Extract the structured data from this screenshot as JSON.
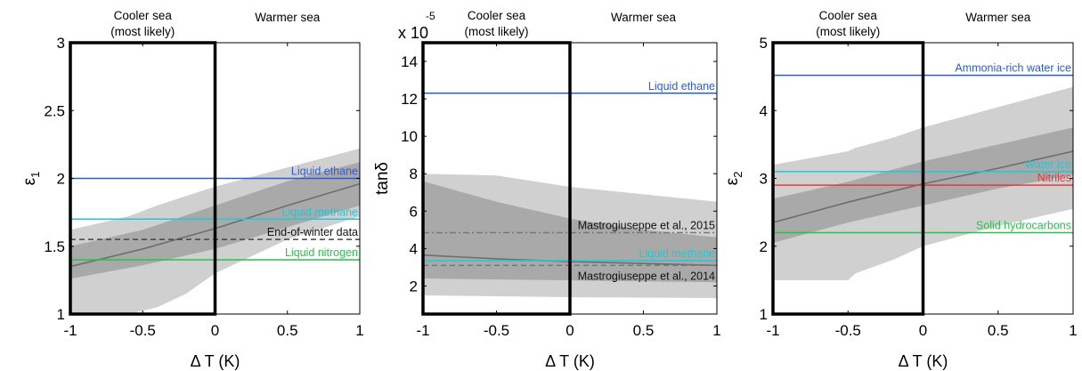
{
  "chart_data": [
    {
      "type": "line",
      "region_labels": {
        "cooler": [
          "Cooler sea",
          "(most likely)"
        ],
        "warmer": "Warmer sea"
      },
      "xlabel": "Δ T (K)",
      "ylabel_base": "ε",
      "ylabel_sub": "1",
      "xlim": [
        -1,
        1
      ],
      "ylim": [
        1,
        3
      ],
      "xticks": [
        -1,
        -0.5,
        0,
        0.5,
        1
      ],
      "xtick_labels": [
        "-1",
        "-0.5",
        "0",
        "0.5",
        "1"
      ],
      "yticks": [
        1,
        1.5,
        2,
        2.5,
        3
      ],
      "ytick_labels": [
        "1",
        "1.5",
        "2",
        "2.5",
        "3"
      ],
      "highlight_box": {
        "x": [
          -1,
          0
        ]
      },
      "bands": [
        {
          "color": "#d0d0d0",
          "x": [
            -1,
            -0.6,
            -0.4,
            -0.2,
            0,
            0.5,
            1
          ],
          "lower": [
            1.0,
            1.0,
            1.05,
            1.15,
            1.3,
            1.55,
            1.72
          ],
          "upper": [
            1.62,
            1.72,
            1.8,
            1.87,
            1.94,
            2.08,
            2.22
          ]
        },
        {
          "color": "#a9a9a9",
          "x": [
            -1,
            -0.5,
            0,
            0.5,
            1
          ],
          "lower": [
            1.26,
            1.36,
            1.48,
            1.64,
            1.8
          ],
          "upper": [
            1.5,
            1.62,
            1.8,
            1.98,
            2.12
          ]
        }
      ],
      "series": [
        {
          "color": "#6e6e6e",
          "x": [
            -1,
            -0.5,
            0,
            0.5,
            1
          ],
          "y": [
            1.35,
            1.48,
            1.63,
            1.8,
            1.96
          ]
        }
      ],
      "hlines": [
        {
          "y": 2.0,
          "label": "Liquid ethane",
          "color": "#2b5bd6",
          "style": "solid"
        },
        {
          "y": 1.7,
          "label": "Liquid methane",
          "color": "#22c7d9",
          "style": "solid"
        },
        {
          "y": 1.55,
          "label": "End-of-winter data",
          "color": "#444444",
          "style": "dashed",
          "label_color": "#111111"
        },
        {
          "y": 1.4,
          "label": "Liquid nitrogen",
          "color": "#2bc14a",
          "style": "solid"
        }
      ]
    },
    {
      "type": "line",
      "region_labels": {
        "cooler": [
          "Cooler sea",
          "(most likely)"
        ],
        "warmer": "Warmer sea"
      },
      "multiplier": [
        "x 10",
        "-5"
      ],
      "xlabel": "Δ T (K)",
      "ylabel_base": "tanδ",
      "ylabel_sub": "",
      "xlim": [
        -1,
        1
      ],
      "ylim": [
        0.5,
        15
      ],
      "xticks": [
        -1,
        -0.5,
        0,
        0.5,
        1
      ],
      "xtick_labels": [
        "-1",
        "-0.5",
        "0",
        "0.5",
        "1"
      ],
      "yticks": [
        2,
        4,
        6,
        8,
        10,
        12,
        14
      ],
      "ytick_labels": [
        "2",
        "4",
        "6",
        "8",
        "10",
        "12",
        "14"
      ],
      "highlight_box": {
        "x": [
          -1,
          0
        ]
      },
      "bands": [
        {
          "color": "#d0d0d0",
          "x": [
            -1,
            -0.5,
            0,
            0.5,
            1
          ],
          "lower": [
            1.5,
            1.45,
            1.4,
            1.38,
            1.35
          ],
          "upper": [
            8.0,
            7.9,
            7.3,
            6.9,
            6.5
          ]
        },
        {
          "color": "#a9a9a9",
          "x": [
            -1,
            -0.5,
            0,
            0.5,
            1
          ],
          "lower": [
            2.4,
            2.35,
            2.3,
            2.25,
            2.2
          ],
          "upper": [
            7.6,
            6.5,
            5.6,
            5.0,
            4.6
          ]
        }
      ],
      "series": [
        {
          "color": "#6e6e6e",
          "x": [
            -1,
            -0.5,
            0,
            0.5,
            1
          ],
          "y": [
            3.65,
            3.45,
            3.3,
            3.2,
            3.1
          ]
        }
      ],
      "hlines": [
        {
          "y": 12.3,
          "label": "Liquid ethane",
          "color": "#2b5bd6",
          "style": "solid"
        },
        {
          "y": 4.85,
          "label": "Mastrogiuseppe et al., 2015",
          "color": "#777777",
          "style": "dashdot",
          "label_color": "#111111"
        },
        {
          "y": 3.35,
          "label": "Liquid methane",
          "color": "#22c7d9",
          "style": "solid"
        },
        {
          "y": 3.1,
          "label": "Mastrogiuseppe et al., 2014",
          "color": "#777777",
          "style": "dashed",
          "label_color": "#111111",
          "label_below": true
        }
      ]
    },
    {
      "type": "line",
      "region_labels": {
        "cooler": [
          "Cooler sea",
          "(most likely)"
        ],
        "warmer": "Warmer sea"
      },
      "xlabel": "Δ T (K)",
      "ylabel_base": "ε",
      "ylabel_sub": "2",
      "xlim": [
        -1,
        1
      ],
      "ylim": [
        1,
        5
      ],
      "xticks": [
        -1,
        -0.5,
        0,
        0.5,
        1
      ],
      "xtick_labels": [
        "-1",
        "-0.5",
        "0",
        "0.5",
        "1"
      ],
      "yticks": [
        1,
        2,
        3,
        4,
        5
      ],
      "ytick_labels": [
        "1",
        "2",
        "3",
        "4",
        "5"
      ],
      "highlight_box": {
        "x": [
          -1,
          0
        ]
      },
      "bands": [
        {
          "color": "#d0d0d0",
          "x": [
            -1,
            -0.5,
            -0.45,
            -0.2,
            0,
            0.5,
            1
          ],
          "lower": [
            1.5,
            1.5,
            1.6,
            1.8,
            2.0,
            2.3,
            2.55
          ],
          "upper": [
            3.2,
            3.4,
            3.45,
            3.6,
            3.75,
            4.05,
            4.35
          ]
        },
        {
          "color": "#a9a9a9",
          "x": [
            -1,
            -0.5,
            0,
            0.5,
            1
          ],
          "lower": [
            2.05,
            2.35,
            2.6,
            2.85,
            3.05
          ],
          "upper": [
            2.7,
            2.95,
            3.25,
            3.5,
            3.75
          ]
        }
      ],
      "series": [
        {
          "color": "#6e6e6e",
          "x": [
            -1,
            -0.5,
            0,
            0.5,
            1
          ],
          "y": [
            2.35,
            2.65,
            2.92,
            3.15,
            3.4
          ]
        }
      ],
      "hlines": [
        {
          "y": 4.52,
          "label": "Ammonia-rich water ice",
          "color": "#2b5bd6",
          "style": "solid"
        },
        {
          "y": 3.1,
          "label": "Water ice",
          "color": "#22c7d9",
          "style": "solid"
        },
        {
          "y": 2.9,
          "label": "Nitriles",
          "color": "#e23b3b",
          "style": "solid"
        },
        {
          "y": 2.2,
          "label": "Solid hydrocarbons",
          "color": "#2bc14a",
          "style": "solid"
        }
      ]
    }
  ]
}
